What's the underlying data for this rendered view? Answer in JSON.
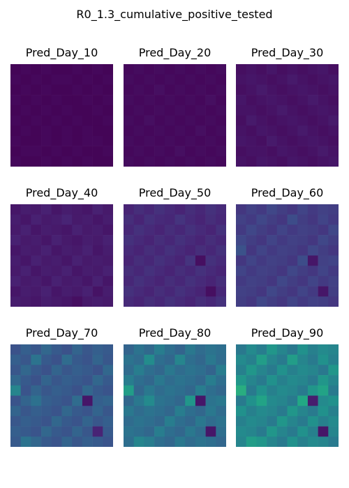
{
  "title": "R0_1.3_cumulative_positive_tested",
  "chart_data": {
    "type": "heatmap",
    "title": "R0_1.3_cumulative_positive_tested",
    "colormap": "viridis",
    "value_range": [
      0,
      1
    ],
    "grid": false,
    "panels": [
      {
        "title": "Pred_Day_10",
        "z": [
          [
            0.01,
            0.02,
            0.01,
            0.02,
            0.01,
            0.01,
            0.02,
            0.01,
            0.02,
            0.01
          ],
          [
            0.02,
            0.01,
            0.02,
            0.01,
            0.02,
            0.02,
            0.01,
            0.02,
            0.01,
            0.02
          ],
          [
            0.01,
            0.02,
            0.01,
            0.02,
            0.01,
            0.01,
            0.02,
            0.01,
            0.02,
            0.01
          ],
          [
            0.02,
            0.01,
            0.02,
            0.01,
            0.02,
            0.01,
            0.01,
            0.02,
            0.01,
            0.02
          ],
          [
            0.01,
            0.02,
            0.01,
            0.02,
            0.01,
            0.02,
            0.01,
            0.01,
            0.02,
            0.01
          ],
          [
            0.02,
            0.01,
            0.02,
            0.01,
            0.02,
            0.01,
            0.02,
            0.01,
            0.01,
            0.02
          ],
          [
            0.01,
            0.02,
            0.01,
            0.02,
            0.01,
            0.02,
            0.01,
            0.02,
            0.01,
            0.01
          ],
          [
            0.02,
            0.01,
            0.01,
            0.02,
            0.01,
            0.02,
            0.01,
            0.02,
            0.02,
            0.01
          ],
          [
            0.01,
            0.02,
            0.02,
            0.01,
            0.02,
            0.01,
            0.02,
            0.01,
            0.01,
            0.02
          ],
          [
            0.02,
            0.01,
            0.01,
            0.02,
            0.01,
            0.02,
            0.01,
            0.02,
            0.01,
            0.01
          ]
        ]
      },
      {
        "title": "Pred_Day_20",
        "z": [
          [
            0.02,
            0.03,
            0.02,
            0.03,
            0.02,
            0.03,
            0.02,
            0.03,
            0.02,
            0.03
          ],
          [
            0.03,
            0.02,
            0.03,
            0.02,
            0.03,
            0.02,
            0.03,
            0.02,
            0.03,
            0.02
          ],
          [
            0.02,
            0.03,
            0.02,
            0.04,
            0.02,
            0.03,
            0.02,
            0.03,
            0.02,
            0.03
          ],
          [
            0.03,
            0.02,
            0.03,
            0.02,
            0.03,
            0.02,
            0.03,
            0.02,
            0.04,
            0.02
          ],
          [
            0.02,
            0.03,
            0.02,
            0.03,
            0.02,
            0.03,
            0.02,
            0.03,
            0.02,
            0.03
          ],
          [
            0.03,
            0.02,
            0.04,
            0.02,
            0.03,
            0.02,
            0.03,
            0.02,
            0.03,
            0.02
          ],
          [
            0.02,
            0.03,
            0.02,
            0.03,
            0.02,
            0.03,
            0.02,
            0.04,
            0.02,
            0.03
          ],
          [
            0.03,
            0.02,
            0.03,
            0.02,
            0.03,
            0.02,
            0.03,
            0.02,
            0.03,
            0.02
          ],
          [
            0.02,
            0.03,
            0.02,
            0.03,
            0.02,
            0.04,
            0.02,
            0.03,
            0.02,
            0.03
          ],
          [
            0.03,
            0.02,
            0.03,
            0.02,
            0.03,
            0.02,
            0.03,
            0.02,
            0.03,
            0.02
          ]
        ]
      },
      {
        "title": "Pred_Day_30",
        "z": [
          [
            0.04,
            0.05,
            0.04,
            0.06,
            0.04,
            0.05,
            0.04,
            0.05,
            0.06,
            0.04
          ],
          [
            0.05,
            0.06,
            0.05,
            0.04,
            0.05,
            0.07,
            0.05,
            0.04,
            0.05,
            0.06
          ],
          [
            0.04,
            0.05,
            0.07,
            0.05,
            0.04,
            0.05,
            0.06,
            0.05,
            0.04,
            0.05
          ],
          [
            0.06,
            0.04,
            0.05,
            0.06,
            0.05,
            0.04,
            0.05,
            0.07,
            0.05,
            0.04
          ],
          [
            0.05,
            0.05,
            0.04,
            0.05,
            0.07,
            0.05,
            0.04,
            0.05,
            0.06,
            0.05
          ],
          [
            0.04,
            0.07,
            0.05,
            0.04,
            0.05,
            0.06,
            0.05,
            0.04,
            0.05,
            0.07
          ],
          [
            0.05,
            0.04,
            0.06,
            0.05,
            0.04,
            0.05,
            0.07,
            0.05,
            0.04,
            0.05
          ],
          [
            0.06,
            0.05,
            0.04,
            0.07,
            0.05,
            0.04,
            0.05,
            0.06,
            0.05,
            0.04
          ],
          [
            0.04,
            0.05,
            0.05,
            0.04,
            0.06,
            0.05,
            0.04,
            0.05,
            0.07,
            0.05
          ],
          [
            0.05,
            0.04,
            0.06,
            0.05,
            0.04,
            0.06,
            0.05,
            0.04,
            0.05,
            0.06
          ]
        ]
      },
      {
        "title": "Pred_Day_40",
        "z": [
          [
            0.06,
            0.08,
            0.07,
            0.09,
            0.06,
            0.08,
            0.07,
            0.06,
            0.09,
            0.07
          ],
          [
            0.08,
            0.06,
            0.09,
            0.07,
            0.08,
            0.1,
            0.07,
            0.08,
            0.06,
            0.08
          ],
          [
            0.07,
            0.09,
            0.06,
            0.08,
            0.07,
            0.06,
            0.09,
            0.07,
            0.08,
            0.06
          ],
          [
            0.09,
            0.07,
            0.08,
            0.06,
            0.09,
            0.07,
            0.06,
            0.08,
            0.07,
            0.09
          ],
          [
            0.06,
            0.08,
            0.07,
            0.09,
            0.06,
            0.08,
            0.07,
            0.09,
            0.06,
            0.08
          ],
          [
            0.08,
            0.06,
            0.09,
            0.07,
            0.08,
            0.06,
            0.09,
            0.07,
            0.08,
            0.07
          ],
          [
            0.07,
            0.09,
            0.06,
            0.08,
            0.07,
            0.09,
            0.06,
            0.08,
            0.07,
            0.09
          ],
          [
            0.09,
            0.07,
            0.08,
            0.06,
            0.09,
            0.07,
            0.08,
            0.06,
            0.09,
            0.06
          ],
          [
            0.06,
            0.08,
            0.07,
            0.09,
            0.06,
            0.08,
            0.07,
            0.09,
            0.05,
            0.08
          ],
          [
            0.08,
            0.07,
            0.06,
            0.08,
            0.07,
            0.06,
            0.04,
            0.07,
            0.08,
            0.07
          ]
        ]
      },
      {
        "title": "Pred_Day_50",
        "z": [
          [
            0.1,
            0.13,
            0.11,
            0.14,
            0.12,
            0.1,
            0.13,
            0.11,
            0.14,
            0.12
          ],
          [
            0.13,
            0.1,
            0.14,
            0.12,
            0.11,
            0.15,
            0.12,
            0.1,
            0.13,
            0.11
          ],
          [
            0.11,
            0.14,
            0.12,
            0.1,
            0.13,
            0.11,
            0.14,
            0.12,
            0.1,
            0.14
          ],
          [
            0.14,
            0.12,
            0.1,
            0.13,
            0.11,
            0.14,
            0.12,
            0.1,
            0.13,
            0.11
          ],
          [
            0.12,
            0.1,
            0.13,
            0.11,
            0.14,
            0.12,
            0.1,
            0.13,
            0.11,
            0.14
          ],
          [
            0.1,
            0.13,
            0.11,
            0.14,
            0.12,
            0.1,
            0.15,
            0.04,
            0.14,
            0.12
          ],
          [
            0.13,
            0.11,
            0.14,
            0.12,
            0.1,
            0.13,
            0.11,
            0.14,
            0.12,
            0.1
          ],
          [
            0.11,
            0.14,
            0.12,
            0.1,
            0.13,
            0.11,
            0.14,
            0.12,
            0.1,
            0.13
          ],
          [
            0.14,
            0.12,
            0.1,
            0.13,
            0.11,
            0.14,
            0.12,
            0.1,
            0.04,
            0.11
          ],
          [
            0.12,
            0.1,
            0.13,
            0.11,
            0.14,
            0.12,
            0.1,
            0.13,
            0.11,
            0.14
          ]
        ]
      },
      {
        "title": "Pred_Day_60",
        "z": [
          [
            0.16,
            0.19,
            0.17,
            0.21,
            0.18,
            0.16,
            0.2,
            0.17,
            0.19,
            0.18
          ],
          [
            0.19,
            0.17,
            0.21,
            0.18,
            0.16,
            0.23,
            0.18,
            0.16,
            0.2,
            0.17
          ],
          [
            0.17,
            0.21,
            0.18,
            0.16,
            0.2,
            0.17,
            0.19,
            0.18,
            0.16,
            0.21
          ],
          [
            0.21,
            0.18,
            0.16,
            0.2,
            0.17,
            0.19,
            0.18,
            0.16,
            0.21,
            0.18
          ],
          [
            0.25,
            0.16,
            0.2,
            0.17,
            0.19,
            0.18,
            0.16,
            0.21,
            0.18,
            0.16
          ],
          [
            0.16,
            0.2,
            0.17,
            0.19,
            0.18,
            0.16,
            0.23,
            0.06,
            0.19,
            0.2
          ],
          [
            0.2,
            0.17,
            0.19,
            0.18,
            0.16,
            0.21,
            0.18,
            0.16,
            0.2,
            0.17
          ],
          [
            0.17,
            0.19,
            0.18,
            0.16,
            0.21,
            0.18,
            0.16,
            0.2,
            0.17,
            0.19
          ],
          [
            0.19,
            0.18,
            0.16,
            0.21,
            0.18,
            0.16,
            0.2,
            0.17,
            0.06,
            0.18
          ],
          [
            0.18,
            0.16,
            0.21,
            0.18,
            0.16,
            0.2,
            0.17,
            0.19,
            0.18,
            0.16
          ]
        ]
      },
      {
        "title": "Pred_Day_70",
        "z": [
          [
            0.25,
            0.3,
            0.27,
            0.33,
            0.28,
            0.25,
            0.32,
            0.27,
            0.3,
            0.28
          ],
          [
            0.3,
            0.27,
            0.38,
            0.28,
            0.25,
            0.35,
            0.28,
            0.26,
            0.32,
            0.27
          ],
          [
            0.27,
            0.33,
            0.28,
            0.25,
            0.32,
            0.27,
            0.3,
            0.28,
            0.25,
            0.33
          ],
          [
            0.33,
            0.28,
            0.25,
            0.32,
            0.27,
            0.3,
            0.28,
            0.26,
            0.33,
            0.28
          ],
          [
            0.45,
            0.26,
            0.32,
            0.27,
            0.3,
            0.28,
            0.25,
            0.33,
            0.28,
            0.26
          ],
          [
            0.26,
            0.32,
            0.37,
            0.3,
            0.28,
            0.26,
            0.35,
            0.06,
            0.3,
            0.32
          ],
          [
            0.32,
            0.27,
            0.3,
            0.28,
            0.26,
            0.33,
            0.28,
            0.26,
            0.32,
            0.27
          ],
          [
            0.27,
            0.3,
            0.28,
            0.26,
            0.33,
            0.28,
            0.26,
            0.32,
            0.27,
            0.3
          ],
          [
            0.3,
            0.28,
            0.26,
            0.33,
            0.28,
            0.26,
            0.32,
            0.27,
            0.1,
            0.28
          ],
          [
            0.28,
            0.38,
            0.33,
            0.28,
            0.26,
            0.32,
            0.27,
            0.3,
            0.28,
            0.26
          ]
        ]
      },
      {
        "title": "Pred_Day_80",
        "z": [
          [
            0.32,
            0.38,
            0.34,
            0.42,
            0.36,
            0.32,
            0.4,
            0.35,
            0.38,
            0.36
          ],
          [
            0.38,
            0.35,
            0.48,
            0.36,
            0.33,
            0.45,
            0.36,
            0.33,
            0.4,
            0.35
          ],
          [
            0.35,
            0.42,
            0.36,
            0.33,
            0.4,
            0.35,
            0.38,
            0.36,
            0.32,
            0.42
          ],
          [
            0.42,
            0.36,
            0.33,
            0.4,
            0.35,
            0.38,
            0.36,
            0.33,
            0.42,
            0.36
          ],
          [
            0.55,
            0.33,
            0.4,
            0.35,
            0.38,
            0.36,
            0.33,
            0.42,
            0.36,
            0.33
          ],
          [
            0.33,
            0.4,
            0.47,
            0.38,
            0.36,
            0.33,
            0.52,
            0.06,
            0.38,
            0.4
          ],
          [
            0.4,
            0.35,
            0.38,
            0.36,
            0.33,
            0.42,
            0.36,
            0.33,
            0.4,
            0.35
          ],
          [
            0.35,
            0.38,
            0.36,
            0.33,
            0.42,
            0.36,
            0.33,
            0.4,
            0.35,
            0.38
          ],
          [
            0.38,
            0.36,
            0.33,
            0.42,
            0.36,
            0.33,
            0.4,
            0.35,
            0.06,
            0.36
          ],
          [
            0.36,
            0.45,
            0.42,
            0.36,
            0.33,
            0.4,
            0.35,
            0.38,
            0.36,
            0.33
          ]
        ]
      },
      {
        "title": "Pred_Day_90",
        "z": [
          [
            0.4,
            0.47,
            0.42,
            0.52,
            0.45,
            0.4,
            0.5,
            0.43,
            0.47,
            0.45
          ],
          [
            0.47,
            0.43,
            0.55,
            0.45,
            0.41,
            0.55,
            0.45,
            0.41,
            0.5,
            0.43
          ],
          [
            0.43,
            0.52,
            0.45,
            0.41,
            0.5,
            0.43,
            0.47,
            0.45,
            0.4,
            0.52
          ],
          [
            0.52,
            0.45,
            0.41,
            0.5,
            0.43,
            0.47,
            0.45,
            0.41,
            0.52,
            0.45
          ],
          [
            0.62,
            0.41,
            0.5,
            0.43,
            0.47,
            0.45,
            0.41,
            0.52,
            0.58,
            0.41
          ],
          [
            0.41,
            0.5,
            0.58,
            0.47,
            0.45,
            0.41,
            0.6,
            0.08,
            0.47,
            0.5
          ],
          [
            0.5,
            0.43,
            0.47,
            0.45,
            0.41,
            0.52,
            0.45,
            0.41,
            0.5,
            0.43
          ],
          [
            0.43,
            0.47,
            0.45,
            0.41,
            0.52,
            0.45,
            0.41,
            0.5,
            0.43,
            0.47
          ],
          [
            0.47,
            0.45,
            0.41,
            0.52,
            0.45,
            0.41,
            0.5,
            0.43,
            0.06,
            0.45
          ],
          [
            0.45,
            0.55,
            0.52,
            0.45,
            0.41,
            0.5,
            0.43,
            0.47,
            0.45,
            0.41
          ]
        ]
      }
    ]
  }
}
